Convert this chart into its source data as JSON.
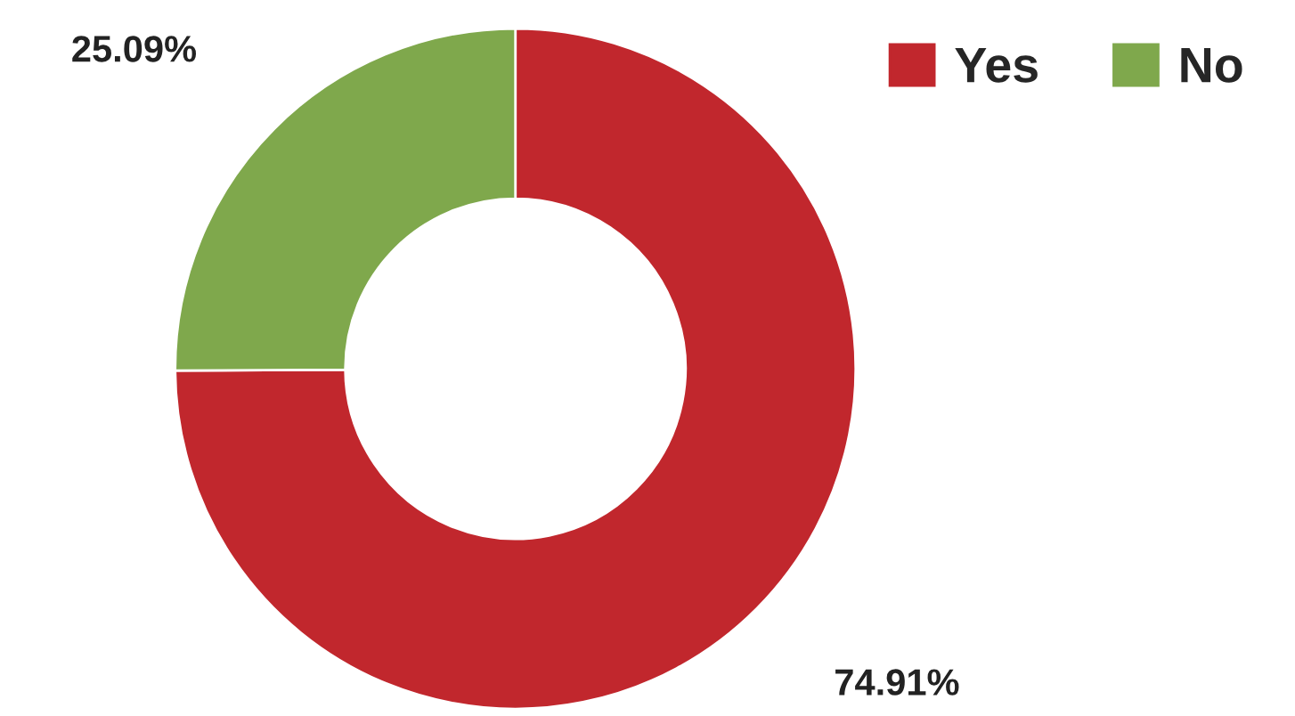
{
  "chart_data": {
    "type": "donut",
    "categories": [
      "Yes",
      "No"
    ],
    "values": [
      74.91,
      25.09
    ],
    "colors": [
      "#c1272d",
      "#7fa84c"
    ],
    "value_labels": [
      "74.91%",
      "25.09%"
    ],
    "legend": "top right"
  }
}
